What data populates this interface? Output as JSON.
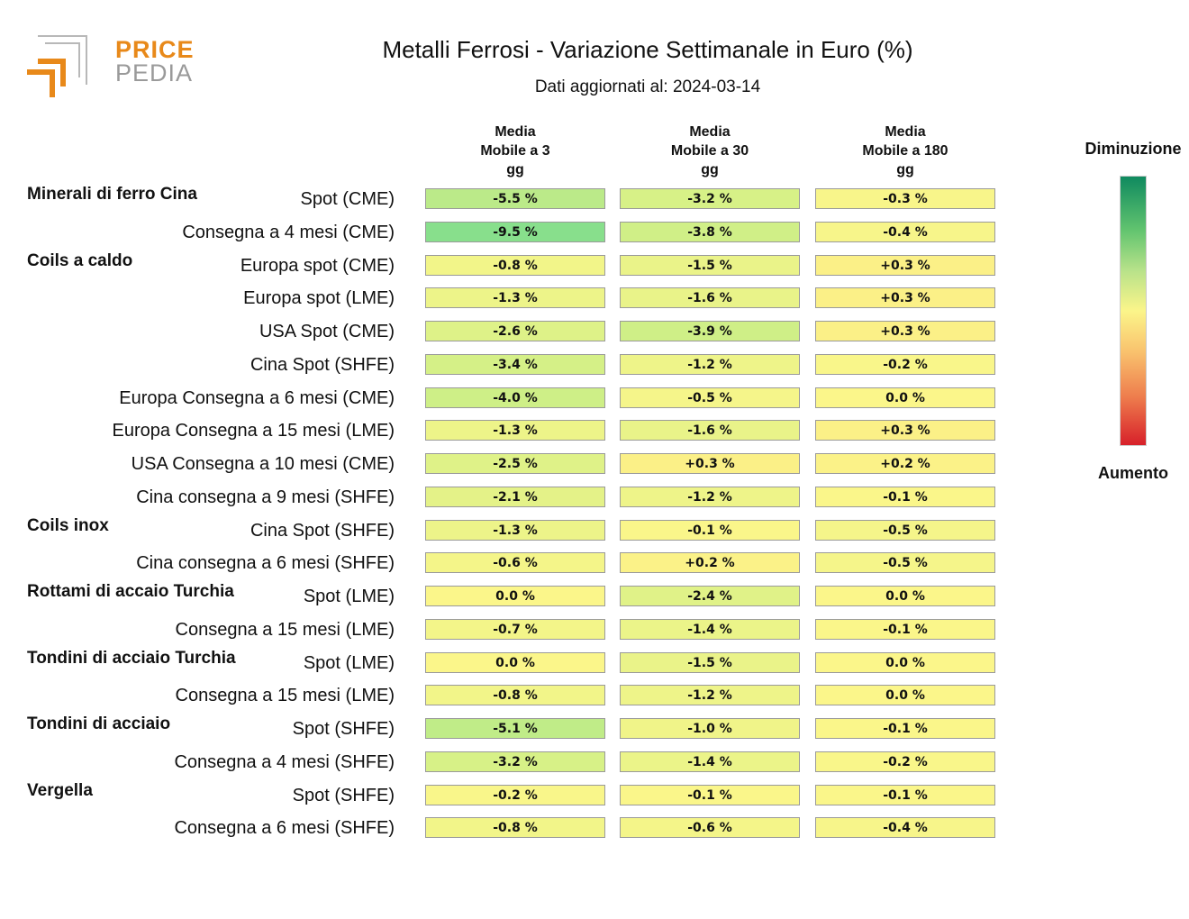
{
  "logo": {
    "line1": "PRICE",
    "line2": "PEDIA",
    "accent": "#e8891a",
    "gray": "#9a9a9a"
  },
  "chart_data": {
    "type": "heatmap",
    "title": "Metalli Ferrosi - Variazione Settimanale in Euro (%)",
    "subtitle": "Dati aggiornati al: 2024-03-14",
    "columns": [
      {
        "line1": "Media",
        "line2": "Mobile a 3",
        "line3": "gg"
      },
      {
        "line1": "Media",
        "line2": "Mobile a 30",
        "line3": "gg"
      },
      {
        "line1": "Media",
        "line2": "Mobile a 180",
        "line3": "gg"
      }
    ],
    "rows": [
      {
        "group": "Minerali di ferro Cina",
        "label": "Spot (CME)",
        "values": [
          -5.5,
          -3.2,
          -0.3
        ],
        "labels": [
          "-5.5 %",
          "-3.2 %",
          "-0.3 %"
        ]
      },
      {
        "group": "",
        "label": "Consegna a 4 mesi (CME)",
        "values": [
          -9.5,
          -3.8,
          -0.4
        ],
        "labels": [
          "-9.5 %",
          "-3.8 %",
          "-0.4 %"
        ]
      },
      {
        "group": "Coils a caldo",
        "label": "Europa spot (CME)",
        "values": [
          -0.8,
          -1.5,
          0.3
        ],
        "labels": [
          "-0.8 %",
          "-1.5 %",
          "+0.3 %"
        ]
      },
      {
        "group": "",
        "label": "Europa spot (LME)",
        "values": [
          -1.3,
          -1.6,
          0.3
        ],
        "labels": [
          "-1.3 %",
          "-1.6 %",
          "+0.3 %"
        ]
      },
      {
        "group": "",
        "label": "USA Spot (CME)",
        "values": [
          -2.6,
          -3.9,
          0.3
        ],
        "labels": [
          "-2.6 %",
          "-3.9 %",
          "+0.3 %"
        ]
      },
      {
        "group": "",
        "label": "Cina Spot (SHFE)",
        "values": [
          -3.4,
          -1.2,
          -0.2
        ],
        "labels": [
          "-3.4 %",
          "-1.2 %",
          "-0.2 %"
        ]
      },
      {
        "group": "",
        "label": "Europa Consegna a 6 mesi (CME)",
        "values": [
          -4.0,
          -0.5,
          0.0
        ],
        "labels": [
          "-4.0 %",
          "-0.5 %",
          "0.0 %"
        ]
      },
      {
        "group": "",
        "label": "Europa Consegna a 15 mesi (LME)",
        "values": [
          -1.3,
          -1.6,
          0.3
        ],
        "labels": [
          "-1.3 %",
          "-1.6 %",
          "+0.3 %"
        ]
      },
      {
        "group": "",
        "label": "USA Consegna a 10 mesi (CME)",
        "values": [
          -2.5,
          0.3,
          0.2
        ],
        "labels": [
          "-2.5 %",
          "+0.3 %",
          "+0.2 %"
        ]
      },
      {
        "group": "",
        "label": "Cina consegna a 9 mesi (SHFE)",
        "values": [
          -2.1,
          -1.2,
          -0.1
        ],
        "labels": [
          "-2.1 %",
          "-1.2 %",
          "-0.1 %"
        ]
      },
      {
        "group": "Coils inox",
        "label": "Cina Spot (SHFE)",
        "values": [
          -1.3,
          -0.1,
          -0.5
        ],
        "labels": [
          "-1.3 %",
          "-0.1 %",
          "-0.5 %"
        ]
      },
      {
        "group": "",
        "label": "Cina consegna a 6 mesi (SHFE)",
        "values": [
          -0.6,
          0.2,
          -0.5
        ],
        "labels": [
          "-0.6 %",
          "+0.2 %",
          "-0.5 %"
        ]
      },
      {
        "group": "Rottami di accaio Turchia",
        "label": "Spot (LME)",
        "values": [
          0.0,
          -2.4,
          0.0
        ],
        "labels": [
          "0.0 %",
          "-2.4 %",
          "0.0 %"
        ]
      },
      {
        "group": "",
        "label": "Consegna a 15 mesi (LME)",
        "values": [
          -0.7,
          -1.4,
          -0.1
        ],
        "labels": [
          "-0.7 %",
          "-1.4 %",
          "-0.1 %"
        ]
      },
      {
        "group": "Tondini di acciaio Turchia",
        "label": "Spot (LME)",
        "values": [
          0.0,
          -1.5,
          0.0
        ],
        "labels": [
          "0.0 %",
          "-1.5 %",
          "0.0 %"
        ]
      },
      {
        "group": "",
        "label": "Consegna a 15 mesi (LME)",
        "values": [
          -0.8,
          -1.2,
          0.0
        ],
        "labels": [
          "-0.8 %",
          "-1.2 %",
          "0.0 %"
        ]
      },
      {
        "group": "Tondini di acciaio",
        "label": "Spot (SHFE)",
        "values": [
          -5.1,
          -1.0,
          -0.1
        ],
        "labels": [
          "-5.1 %",
          "-1.0 %",
          "-0.1 %"
        ]
      },
      {
        "group": "",
        "label": "Consegna a 4 mesi (SHFE)",
        "values": [
          -3.2,
          -1.4,
          -0.2
        ],
        "labels": [
          "-3.2 %",
          "-1.4 %",
          "-0.2 %"
        ]
      },
      {
        "group": "Vergella",
        "label": "Spot (SHFE)",
        "values": [
          -0.2,
          -0.1,
          -0.1
        ],
        "labels": [
          "-0.2 %",
          "-0.1 %",
          "-0.1 %"
        ]
      },
      {
        "group": "",
        "label": "Consegna a 6 mesi (SHFE)",
        "values": [
          -0.8,
          -0.6,
          -0.4
        ],
        "labels": [
          "-0.8 %",
          "-0.6 %",
          "-0.4 %"
        ]
      }
    ],
    "legend": {
      "top": "Diminuzione",
      "bottom": "Aumento",
      "placement": "right"
    },
    "colors": {
      "strong_decrease": "#0f8a5f",
      "neutral": "#fbf58a",
      "strong_increase": "#d7202a",
      "cell_border": "#9a9a9a"
    }
  }
}
